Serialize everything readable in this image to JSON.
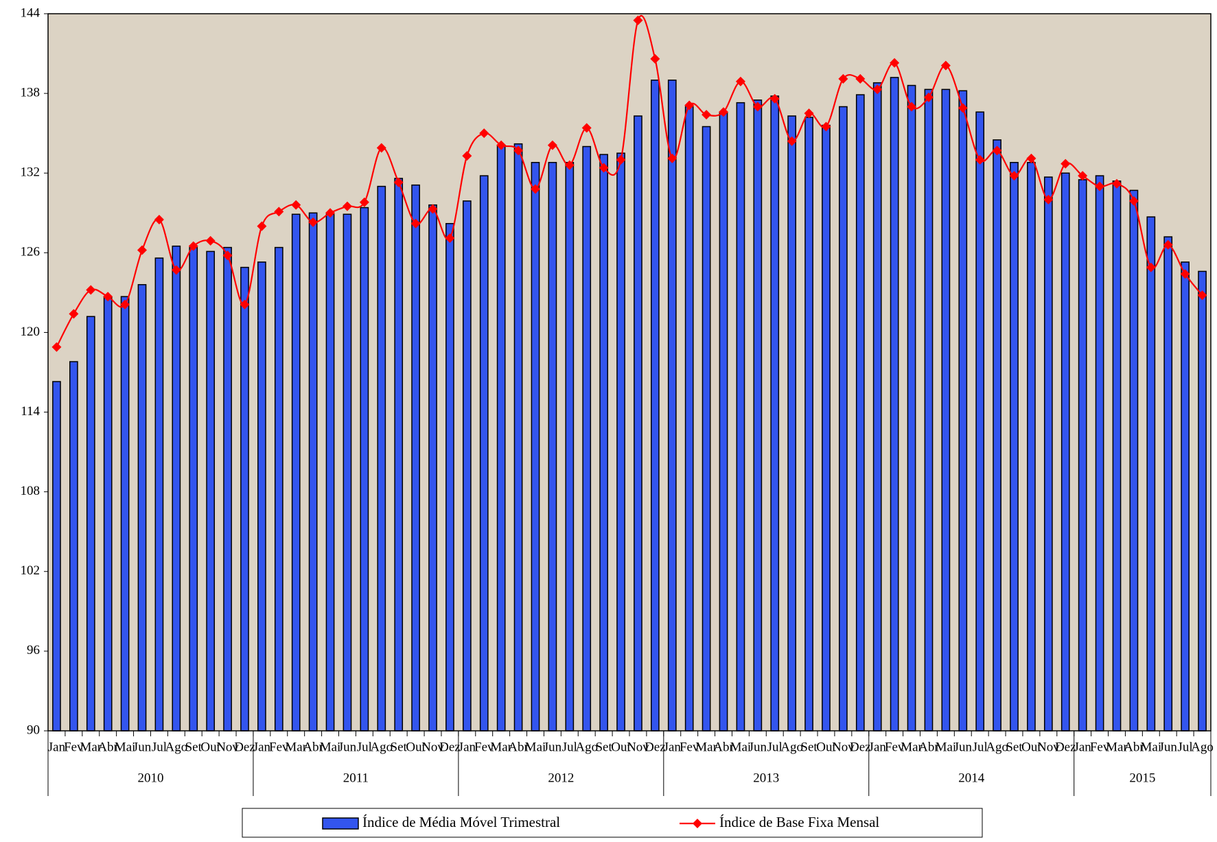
{
  "chart_data": {
    "type": "bar-line",
    "categories": [
      "Jan",
      "Fev",
      "Mar",
      "Abr",
      "Mai",
      "Jun",
      "Jul",
      "Ago",
      "Set",
      "Out",
      "Nov",
      "Dez",
      "Jan",
      "Fev",
      "Mar",
      "Abr",
      "Mai",
      "Jun",
      "Jul",
      "Ago",
      "Set",
      "Out",
      "Nov",
      "Dez",
      "Jan",
      "Fev",
      "Mar",
      "Abr",
      "Mai",
      "Jun",
      "Jul",
      "Ago",
      "Set",
      "Out",
      "Nov",
      "Dez",
      "Jan",
      "Fev",
      "Mar",
      "Abr",
      "Mai",
      "Jun",
      "Jul",
      "Ago",
      "Set",
      "Out",
      "Nov",
      "Dez",
      "Jan",
      "Fev",
      "Mar",
      "Abr",
      "Mai",
      "Jun",
      "Jul",
      "Ago",
      "Set",
      "Out",
      "Nov",
      "Dez",
      "Jan",
      "Fev",
      "Mar",
      "Abr",
      "Mai",
      "Jun",
      "Jul",
      "Ago"
    ],
    "groups": [
      "2010",
      "2011",
      "2012",
      "2013",
      "2014",
      "2015"
    ],
    "series": [
      {
        "name": "Índice de Média Móvel Trimestral",
        "kind": "bar",
        "color": "#3355ee",
        "values": [
          116.3,
          117.8,
          121.2,
          122.7,
          122.7,
          123.6,
          125.6,
          126.5,
          126.4,
          126.1,
          126.4,
          124.9,
          125.3,
          126.4,
          128.9,
          129.0,
          128.9,
          128.9,
          129.4,
          131.0,
          131.6,
          131.1,
          129.6,
          128.2,
          129.9,
          131.8,
          134.1,
          134.2,
          132.8,
          132.8,
          132.8,
          134.0,
          133.4,
          133.5,
          136.3,
          139.0,
          139.0,
          137.0,
          135.5,
          136.6,
          137.3,
          137.5,
          137.8,
          136.3,
          136.2,
          135.6,
          137.0,
          137.9,
          138.8,
          139.2,
          138.6,
          138.3,
          138.3,
          138.2,
          136.6,
          134.5,
          132.8,
          132.8,
          131.7,
          132.0,
          131.5,
          131.8,
          131.4,
          130.7,
          128.7,
          127.2,
          125.3,
          124.6
        ]
      },
      {
        "name": "Índice de Base Fixa Mensal",
        "kind": "line",
        "color": "#ff0000",
        "values": [
          118.9,
          121.4,
          123.2,
          122.7,
          122.1,
          126.2,
          128.5,
          124.7,
          126.5,
          126.9,
          125.8,
          122.1,
          128.0,
          129.1,
          129.6,
          128.3,
          129.0,
          129.5,
          129.8,
          133.9,
          131.3,
          128.2,
          129.3,
          127.1,
          133.3,
          135.0,
          134.1,
          133.7,
          130.8,
          134.1,
          132.6,
          135.4,
          132.4,
          133.0,
          143.5,
          140.6,
          133.1,
          137.1,
          136.4,
          136.6,
          138.9,
          137.0,
          137.6,
          134.4,
          136.5,
          135.5,
          139.1,
          139.1,
          138.3,
          140.3,
          137.0,
          137.7,
          140.1,
          136.9,
          133.0,
          133.7,
          131.8,
          133.1,
          130.0,
          132.7,
          131.8,
          131.0,
          131.2,
          129.9,
          124.9,
          126.6,
          124.4,
          122.8
        ]
      }
    ],
    "ylim": [
      90,
      144
    ],
    "yticks": [
      90,
      96,
      102,
      108,
      114,
      120,
      126,
      132,
      138,
      144
    ],
    "grid": false,
    "background": "#dcd3c4"
  }
}
